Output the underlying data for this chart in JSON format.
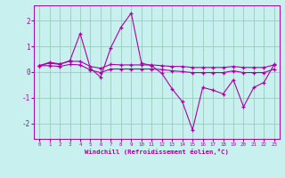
{
  "xlabel": "Windchill (Refroidissement éolien,°C)",
  "background_color": "#c8f0ee",
  "grid_color": "#99ccbb",
  "line_color": "#aa00aa",
  "spine_color": "#aa00aa",
  "xlim": [
    -0.5,
    23.5
  ],
  "ylim": [
    -2.6,
    2.6
  ],
  "xticks": [
    0,
    1,
    2,
    3,
    4,
    5,
    6,
    7,
    8,
    9,
    10,
    11,
    12,
    13,
    14,
    15,
    16,
    17,
    18,
    19,
    20,
    21,
    22,
    23
  ],
  "yticks": [
    -2,
    -1,
    0,
    1,
    2
  ],
  "x": [
    0,
    1,
    2,
    3,
    4,
    5,
    6,
    7,
    8,
    9,
    10,
    11,
    12,
    13,
    14,
    15,
    16,
    17,
    18,
    19,
    20,
    21,
    22,
    23
  ],
  "line1": [
    0.25,
    0.35,
    0.3,
    0.45,
    1.5,
    0.15,
    -0.2,
    0.95,
    1.75,
    2.3,
    0.35,
    0.25,
    -0.05,
    -0.65,
    -1.15,
    -2.25,
    -0.6,
    -0.7,
    -0.85,
    -0.3,
    -1.35,
    -0.6,
    -0.4,
    0.3
  ],
  "line2": [
    0.25,
    0.38,
    0.32,
    0.42,
    0.42,
    0.22,
    0.15,
    0.3,
    0.28,
    0.28,
    0.28,
    0.28,
    0.25,
    0.22,
    0.22,
    0.18,
    0.18,
    0.18,
    0.18,
    0.22,
    0.18,
    0.18,
    0.18,
    0.28
  ],
  "line3": [
    0.25,
    0.25,
    0.22,
    0.3,
    0.28,
    0.08,
    -0.02,
    0.12,
    0.12,
    0.12,
    0.12,
    0.12,
    0.1,
    0.05,
    0.02,
    -0.02,
    -0.02,
    -0.02,
    -0.02,
    0.05,
    -0.02,
    -0.02,
    -0.02,
    0.12
  ]
}
